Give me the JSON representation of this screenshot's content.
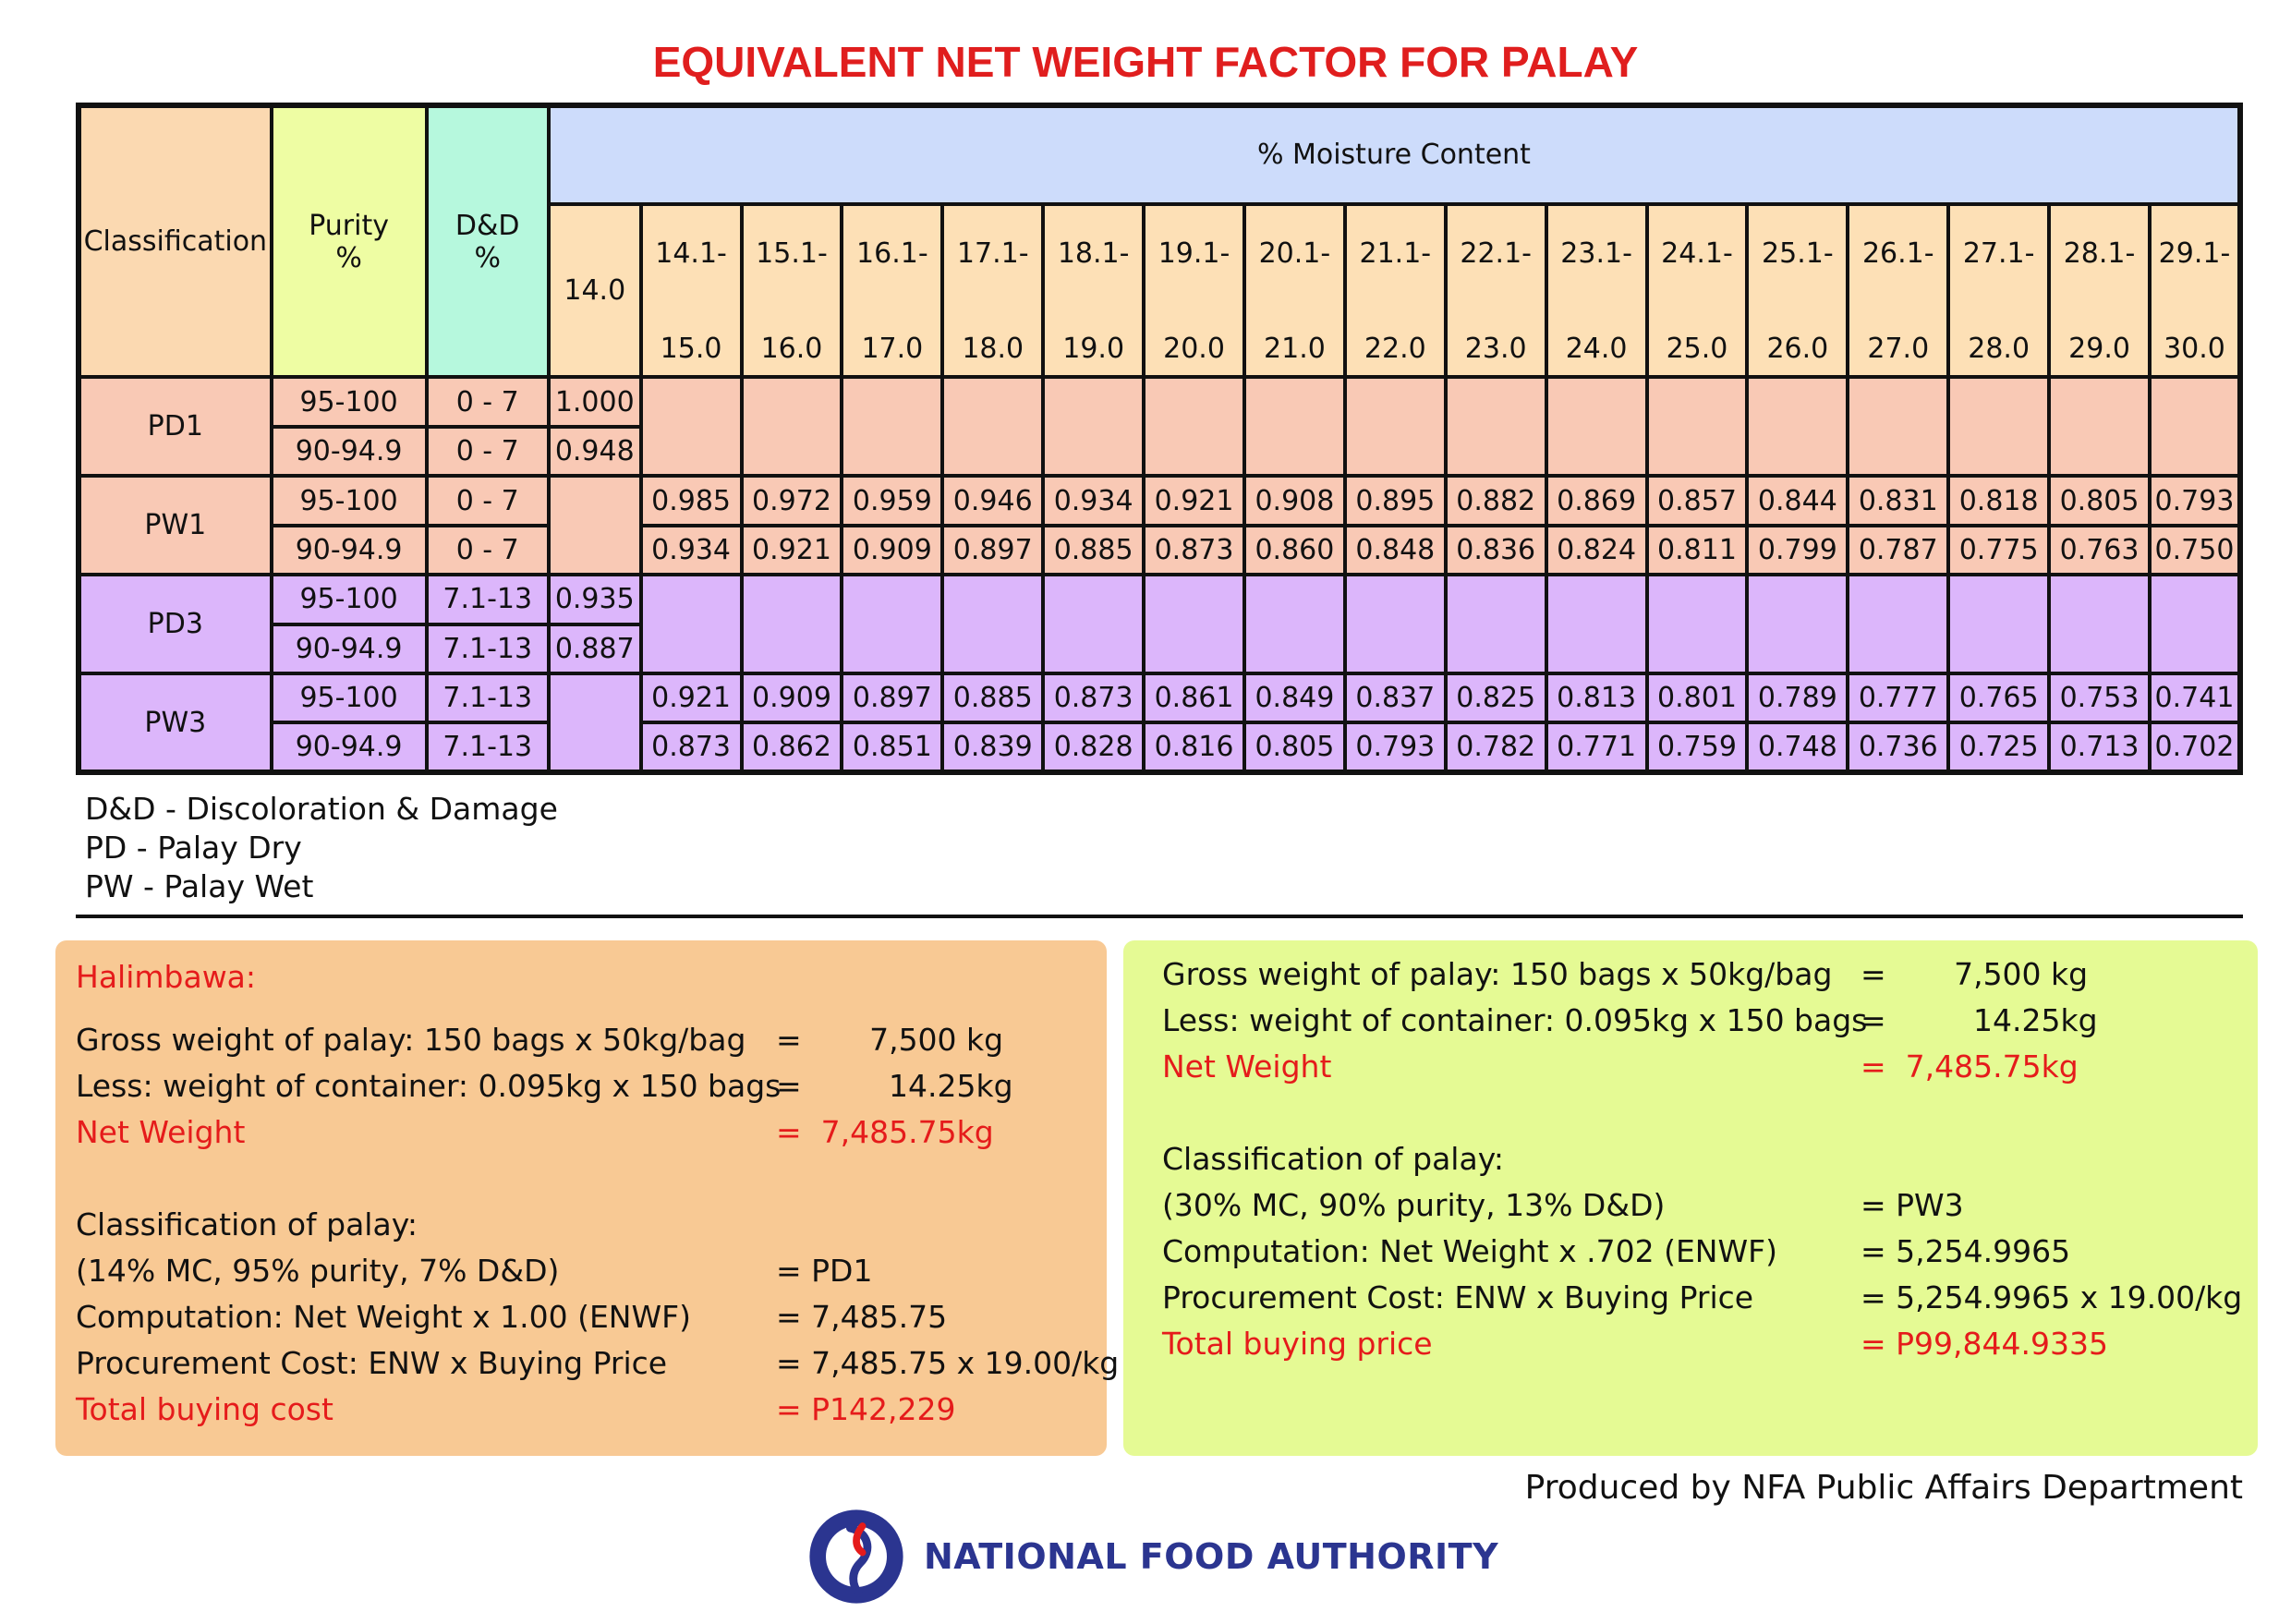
{
  "title": "EQUIVALENT NET WEIGHT FACTOR FOR PALAY",
  "table": {
    "headers": {
      "classification": "Classification",
      "purity": "Purity\n%",
      "dd": "D&D\n%",
      "moisture": "% Moisture Content",
      "first_col": "14.0"
    },
    "ranges": [
      [
        "14.1-",
        "15.0"
      ],
      [
        "15.1-",
        "16.0"
      ],
      [
        "16.1-",
        "17.0"
      ],
      [
        "17.1-",
        "18.0"
      ],
      [
        "18.1-",
        "19.0"
      ],
      [
        "19.1-",
        "20.0"
      ],
      [
        "20.1-",
        "21.0"
      ],
      [
        "21.1-",
        "22.0"
      ],
      [
        "22.1-",
        "23.0"
      ],
      [
        "23.1-",
        "24.0"
      ],
      [
        "24.1-",
        "25.0"
      ],
      [
        "25.1-",
        "26.0"
      ],
      [
        "26.1-",
        "27.0"
      ],
      [
        "27.1-",
        "28.0"
      ],
      [
        "28.1-",
        "29.0"
      ],
      [
        "29.1-",
        "30.0"
      ]
    ],
    "groups": [
      {
        "name": "PD1",
        "color": "#f9c9b5",
        "rows": [
          {
            "purity": "95-100",
            "dd": "0 - 7",
            "v14": "1.000",
            "values": []
          },
          {
            "purity": "90-94.9",
            "dd": "0 - 7",
            "v14": "0.948",
            "values": []
          }
        ]
      },
      {
        "name": "PW1",
        "color": "#f9c9b5",
        "rows": [
          {
            "purity": "95-100",
            "dd": "0 - 7",
            "v14": "",
            "values": [
              "0.985",
              "0.972",
              "0.959",
              "0.946",
              "0.934",
              "0.921",
              "0.908",
              "0.895",
              "0.882",
              "0.869",
              "0.857",
              "0.844",
              "0.831",
              "0.818",
              "0.805",
              "0.793"
            ]
          },
          {
            "purity": "90-94.9",
            "dd": "0 - 7",
            "v14": "",
            "values": [
              "0.934",
              "0.921",
              "0.909",
              "0.897",
              "0.885",
              "0.873",
              "0.860",
              "0.848",
              "0.836",
              "0.824",
              "0.811",
              "0.799",
              "0.787",
              "0.775",
              "0.763",
              "0.750"
            ]
          }
        ]
      },
      {
        "name": "PD3",
        "color": "#dcb6fb",
        "rows": [
          {
            "purity": "95-100",
            "dd": "7.1-13",
            "v14": "0.935",
            "values": []
          },
          {
            "purity": "90-94.9",
            "dd": "7.1-13",
            "v14": "0.887",
            "values": []
          }
        ]
      },
      {
        "name": "PW3",
        "color": "#dcb6fb",
        "rows": [
          {
            "purity": "95-100",
            "dd": "7.1-13",
            "v14": "",
            "values": [
              "0.921",
              "0.909",
              "0.897",
              "0.885",
              "0.873",
              "0.861",
              "0.849",
              "0.837",
              "0.825",
              "0.813",
              "0.801",
              "0.789",
              "0.777",
              "0.765",
              "0.753",
              "0.741"
            ]
          },
          {
            "purity": "90-94.9",
            "dd": "7.1-13",
            "v14": "",
            "values": [
              "0.873",
              "0.862",
              "0.851",
              "0.839",
              "0.828",
              "0.816",
              "0.805",
              "0.793",
              "0.782",
              "0.771",
              "0.759",
              "0.748",
              "0.736",
              "0.725",
              "0.713",
              "0.702"
            ]
          }
        ]
      }
    ]
  },
  "legend": [
    "D&D - Discoloration & Damage",
    "PD - Palay Dry",
    "PW - Palay Wet"
  ],
  "example_left": {
    "heading": "Halimbawa:",
    "lines": [
      {
        "label": "Gross weight of palay: 150 bags x 50kg/bag",
        "value": "=       7,500 kg",
        "red": false
      },
      {
        "label": "Less: weight of container: 0.095kg x 150 bags",
        "value": "=         14.25kg",
        "red": false
      },
      {
        "label": "Net Weight",
        "value": "=  7,485.75kg",
        "red": true
      },
      {
        "label": "Classification of palay:",
        "value": "",
        "red": false
      },
      {
        "label": "(14% MC, 95% purity, 7% D&D)",
        "value": "= PD1",
        "red": false
      },
      {
        "label": "Computation: Net Weight x 1.00 (ENWF)",
        "value": "= 7,485.75",
        "red": false
      },
      {
        "label": "Procurement Cost: ENW x Buying Price",
        "value": "= 7,485.75 x 19.00/kg",
        "red": false
      },
      {
        "label": "Total buying cost",
        "value": "= P142,229",
        "red": true
      }
    ]
  },
  "example_right": {
    "lines": [
      {
        "label": "Gross weight of palay: 150 bags x 50kg/bag",
        "value": "=       7,500 kg",
        "red": false
      },
      {
        "label": "Less: weight of container: 0.095kg x 150 bags",
        "value": "=         14.25kg",
        "red": false
      },
      {
        "label": "Net Weight",
        "value": "=  7,485.75kg",
        "red": true
      },
      {
        "label": "Classification of palay:",
        "value": "",
        "red": false
      },
      {
        "label": "(30% MC, 90% purity, 13% D&D)",
        "value": "= PW3",
        "red": false
      },
      {
        "label": "Computation: Net Weight x .702 (ENWF)",
        "value": "= 5,254.9965",
        "red": false
      },
      {
        "label": "Procurement Cost: ENW x Buying Price",
        "value": "= 5,254.9965 x 19.00/kg",
        "red": false
      },
      {
        "label": "Total buying price",
        "value": "= P99,844.9335",
        "red": true
      }
    ]
  },
  "footer": "Produced by NFA Public Affairs Department",
  "logo": {
    "text": "NATIONAL FOOD AUTHORITY",
    "icon": "nfa-logo-icon"
  },
  "colors": {
    "title": "#e01e1e",
    "left_panel": "#f8c994",
    "right_panel": "#e5fa94",
    "red_text": "#e51b1b",
    "logo_blue": "#2b3590"
  }
}
